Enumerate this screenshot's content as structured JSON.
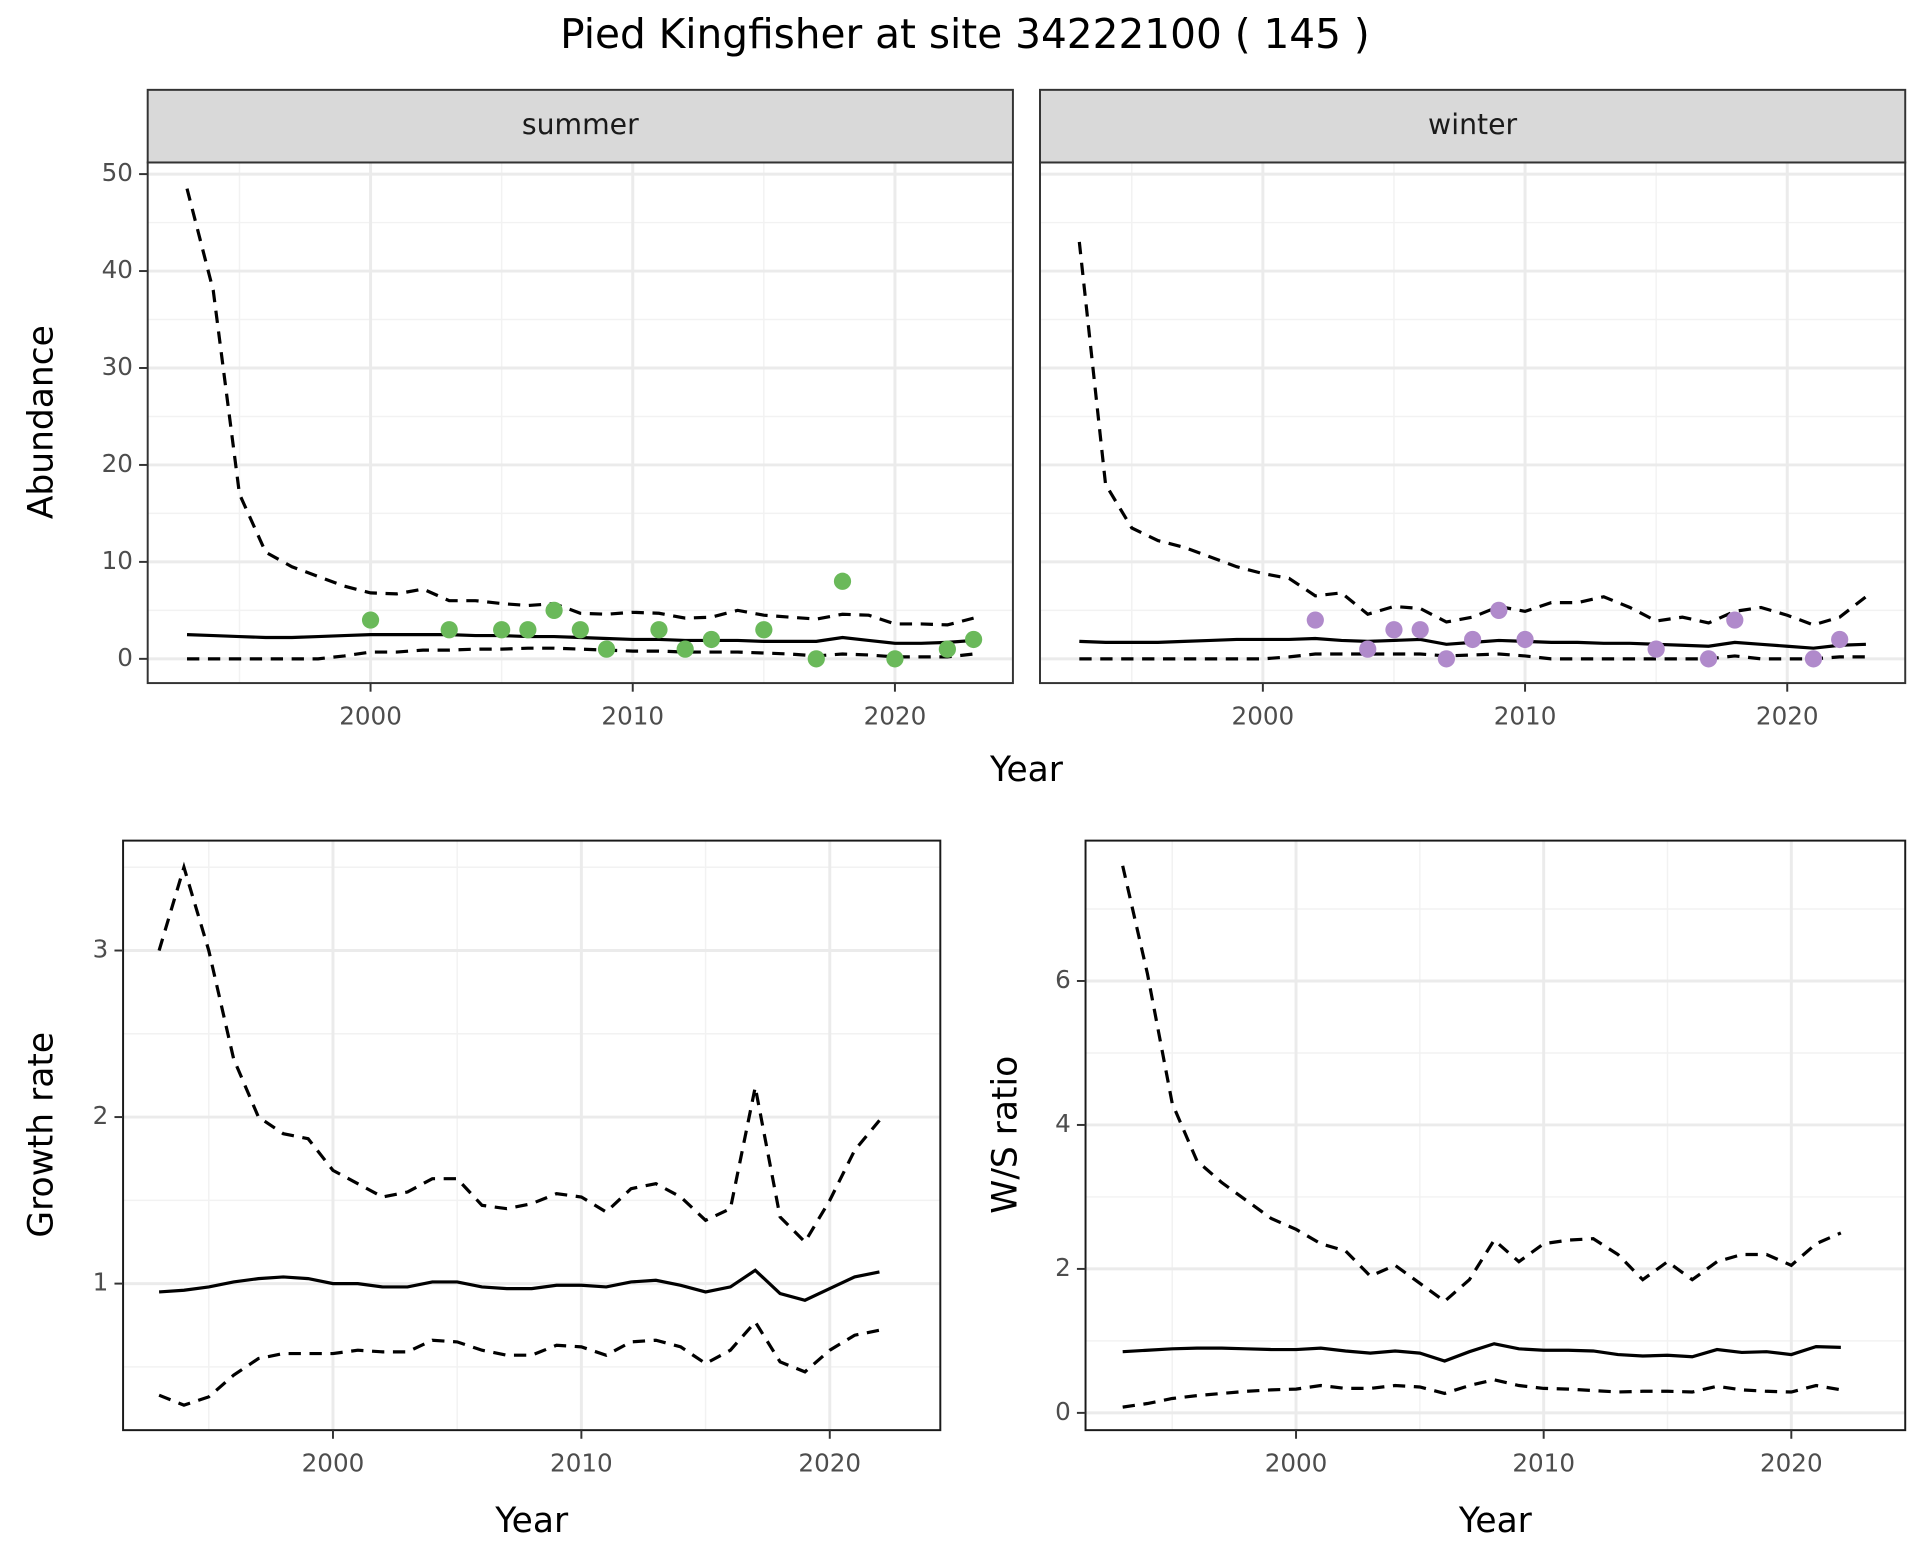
{
  "title": "Pied Kingfisher at site 34222100 ( 145 )",
  "chart_data": [
    {
      "type": "line",
      "facet": "summer",
      "xlabel": "Year",
      "ylabel": "Abundance",
      "xlim": [
        1991.5,
        2024.5
      ],
      "xticks": [
        2000,
        2010,
        2020
      ],
      "xminor": [
        1995,
        2005,
        2015
      ],
      "ylim": [
        -2.5,
        51.2
      ],
      "yticks": [
        0,
        10,
        20,
        30,
        40,
        50
      ],
      "yminor": [
        5,
        15,
        25,
        35,
        45
      ],
      "grid": true,
      "x": [
        1993,
        1994,
        1995,
        1996,
        1997,
        1998,
        1999,
        2000,
        2001,
        2002,
        2003,
        2004,
        2005,
        2006,
        2007,
        2008,
        2009,
        2010,
        2011,
        2012,
        2013,
        2014,
        2015,
        2016,
        2017,
        2018,
        2019,
        2020,
        2021,
        2022,
        2023
      ],
      "series": [
        {
          "color": "#000000",
          "dashed": true,
          "values": [
            48.5,
            38,
            17,
            11,
            9.5,
            8.5,
            7.5,
            6.8,
            6.7,
            7.2,
            6.0,
            6.0,
            5.7,
            5.5,
            5.7,
            4.7,
            4.6,
            4.8,
            4.7,
            4.2,
            4.3,
            5.0,
            4.5,
            4.3,
            4.1,
            4.6,
            4.5,
            3.6,
            3.6,
            3.5,
            4.2
          ]
        },
        {
          "color": "#000000",
          "dashed": false,
          "values": [
            2.5,
            2.4,
            2.3,
            2.2,
            2.2,
            2.3,
            2.4,
            2.5,
            2.5,
            2.5,
            2.5,
            2.4,
            2.4,
            2.3,
            2.3,
            2.2,
            2.1,
            2.0,
            2.0,
            1.9,
            1.9,
            1.9,
            1.8,
            1.8,
            1.8,
            2.2,
            1.9,
            1.6,
            1.6,
            1.7,
            1.9
          ]
        },
        {
          "color": "#000000",
          "dashed": true,
          "values": [
            0,
            0,
            0,
            0,
            0,
            0,
            0.3,
            0.7,
            0.7,
            0.9,
            0.9,
            1.0,
            1.0,
            1.1,
            1.1,
            1.0,
            0.9,
            0.8,
            0.8,
            0.7,
            0.7,
            0.7,
            0.6,
            0.5,
            0.3,
            0.5,
            0.4,
            0.2,
            0.2,
            0.2,
            0.5
          ]
        }
      ],
      "points": {
        "color": "#6ab95a",
        "x": [
          2000,
          2003,
          2005,
          2006,
          2007,
          2008,
          2009,
          2011,
          2012,
          2013,
          2015,
          2017,
          2018,
          2020,
          2022,
          2023
        ],
        "values": [
          4,
          3,
          3,
          3,
          5,
          3,
          1,
          3,
          1,
          2,
          3,
          0,
          8,
          0,
          1,
          2
        ]
      }
    },
    {
      "type": "line",
      "facet": "winter",
      "show_yticklabels": false,
      "xlim": [
        1991.5,
        2024.5
      ],
      "xticks": [
        2000,
        2010,
        2020
      ],
      "xminor": [
        1995,
        2005,
        2015
      ],
      "ylim": [
        -2.5,
        51.2
      ],
      "yticks": [
        0,
        10,
        20,
        30,
        40,
        50
      ],
      "yminor": [
        5,
        15,
        25,
        35,
        45
      ],
      "grid": true,
      "x": [
        1993,
        1994,
        1995,
        1996,
        1997,
        1998,
        1999,
        2000,
        2001,
        2002,
        2003,
        2004,
        2005,
        2006,
        2007,
        2008,
        2009,
        2010,
        2011,
        2012,
        2013,
        2014,
        2015,
        2016,
        2017,
        2018,
        2019,
        2020,
        2021,
        2022,
        2023
      ],
      "series": [
        {
          "color": "#000000",
          "dashed": true,
          "values": [
            43,
            18,
            13.5,
            12.2,
            11.5,
            10.5,
            9.5,
            8.8,
            8.3,
            6.5,
            6.8,
            4.6,
            5.4,
            5.2,
            3.8,
            4.3,
            5.4,
            4.9,
            5.8,
            5.8,
            6.4,
            5.3,
            3.9,
            4.3,
            3.7,
            4.9,
            5.3,
            4.5,
            3.5,
            4.3,
            6.4
          ]
        },
        {
          "color": "#000000",
          "dashed": false,
          "values": [
            1.8,
            1.7,
            1.7,
            1.7,
            1.8,
            1.9,
            2.0,
            2.0,
            2.0,
            2.1,
            1.9,
            1.8,
            1.9,
            2.0,
            1.5,
            1.7,
            1.9,
            1.8,
            1.7,
            1.7,
            1.6,
            1.6,
            1.5,
            1.4,
            1.3,
            1.7,
            1.5,
            1.3,
            1.1,
            1.4,
            1.5
          ]
        },
        {
          "color": "#000000",
          "dashed": true,
          "values": [
            0,
            0,
            0,
            0,
            0,
            0,
            0,
            0,
            0.2,
            0.5,
            0.5,
            0.5,
            0.5,
            0.5,
            0.3,
            0.4,
            0.5,
            0.3,
            0,
            0,
            0,
            0,
            0,
            0,
            0,
            0.3,
            0,
            0,
            0,
            0.2,
            0.2
          ]
        }
      ],
      "points": {
        "color": "#b08acb",
        "x": [
          2002,
          2004,
          2005,
          2006,
          2007,
          2008,
          2009,
          2010,
          2015,
          2017,
          2018,
          2021,
          2022
        ],
        "values": [
          4,
          1,
          3,
          3,
          0,
          2,
          5,
          2,
          1,
          0,
          4,
          0,
          2
        ]
      }
    },
    {
      "type": "line",
      "xlabel": "Year",
      "ylabel": "Growth rate",
      "xlim": [
        1991.55,
        2024.45
      ],
      "xticks": [
        2000,
        2010,
        2020
      ],
      "xminor": [
        1995,
        2005,
        2015
      ],
      "ylim": [
        0.12,
        3.66
      ],
      "yticks": [
        1,
        2,
        3
      ],
      "yminor": [
        0.5,
        1.5,
        2.5,
        3.5
      ],
      "grid": true,
      "x": [
        1993,
        1994,
        1995,
        1996,
        1997,
        1998,
        1999,
        2000,
        2001,
        2002,
        2003,
        2004,
        2005,
        2006,
        2007,
        2008,
        2009,
        2010,
        2011,
        2012,
        2013,
        2014,
        2015,
        2016,
        2017,
        2018,
        2019,
        2020,
        2021,
        2022
      ],
      "series": [
        {
          "color": "#000000",
          "dashed": true,
          "values": [
            3.0,
            3.5,
            3.0,
            2.35,
            2.0,
            1.9,
            1.87,
            1.68,
            1.6,
            1.52,
            1.55,
            1.63,
            1.63,
            1.47,
            1.45,
            1.48,
            1.54,
            1.52,
            1.43,
            1.57,
            1.6,
            1.52,
            1.38,
            1.45,
            2.18,
            1.4,
            1.25,
            1.5,
            1.8,
            1.98
          ]
        },
        {
          "color": "#000000",
          "dashed": false,
          "values": [
            0.95,
            0.96,
            0.98,
            1.01,
            1.03,
            1.04,
            1.03,
            1.0,
            1.0,
            0.98,
            0.98,
            1.01,
            1.01,
            0.98,
            0.97,
            0.97,
            0.99,
            0.99,
            0.98,
            1.01,
            1.02,
            0.99,
            0.95,
            0.98,
            1.08,
            0.94,
            0.9,
            0.97,
            1.04,
            1.07
          ]
        },
        {
          "color": "#000000",
          "dashed": true,
          "values": [
            0.33,
            0.27,
            0.32,
            0.45,
            0.55,
            0.58,
            0.58,
            0.58,
            0.6,
            0.59,
            0.59,
            0.66,
            0.65,
            0.6,
            0.57,
            0.57,
            0.63,
            0.62,
            0.57,
            0.65,
            0.66,
            0.62,
            0.52,
            0.6,
            0.77,
            0.53,
            0.47,
            0.6,
            0.69,
            0.72
          ]
        }
      ]
    },
    {
      "type": "line",
      "xlabel": "Year",
      "ylabel": "W/S ratio",
      "xlim": [
        1991.5,
        2024.6
      ],
      "xticks": [
        2000,
        2010,
        2020
      ],
      "xminor": [
        1995,
        2005,
        2015
      ],
      "ylim": [
        -0.24,
        7.95
      ],
      "yticks": [
        0,
        2,
        4,
        6
      ],
      "yminor": [
        1,
        3,
        5,
        7
      ],
      "grid": true,
      "x": [
        1993,
        1994,
        1995,
        1996,
        1997,
        1998,
        1999,
        2000,
        2001,
        2002,
        2003,
        2004,
        2005,
        2006,
        2007,
        2008,
        2009,
        2010,
        2011,
        2012,
        2013,
        2014,
        2015,
        2016,
        2017,
        2018,
        2019,
        2020,
        2021,
        2022
      ],
      "series": [
        {
          "color": "#000000",
          "dashed": true,
          "values": [
            7.6,
            6.1,
            4.3,
            3.5,
            3.2,
            2.95,
            2.7,
            2.55,
            2.35,
            2.25,
            1.9,
            2.05,
            1.8,
            1.55,
            1.85,
            2.4,
            2.1,
            2.35,
            2.4,
            2.42,
            2.2,
            1.85,
            2.1,
            1.85,
            2.1,
            2.2,
            2.2,
            2.05,
            2.35,
            2.5
          ]
        },
        {
          "color": "#000000",
          "dashed": false,
          "values": [
            0.85,
            0.87,
            0.89,
            0.9,
            0.9,
            0.89,
            0.88,
            0.88,
            0.9,
            0.86,
            0.83,
            0.86,
            0.83,
            0.72,
            0.85,
            0.96,
            0.89,
            0.87,
            0.87,
            0.86,
            0.81,
            0.79,
            0.8,
            0.78,
            0.88,
            0.84,
            0.85,
            0.81,
            0.92,
            0.91
          ]
        },
        {
          "color": "#000000",
          "dashed": true,
          "values": [
            0.08,
            0.13,
            0.2,
            0.24,
            0.27,
            0.3,
            0.32,
            0.33,
            0.38,
            0.34,
            0.34,
            0.38,
            0.36,
            0.27,
            0.38,
            0.46,
            0.38,
            0.34,
            0.33,
            0.31,
            0.29,
            0.3,
            0.3,
            0.29,
            0.37,
            0.32,
            0.3,
            0.29,
            0.38,
            0.32
          ]
        }
      ]
    }
  ]
}
